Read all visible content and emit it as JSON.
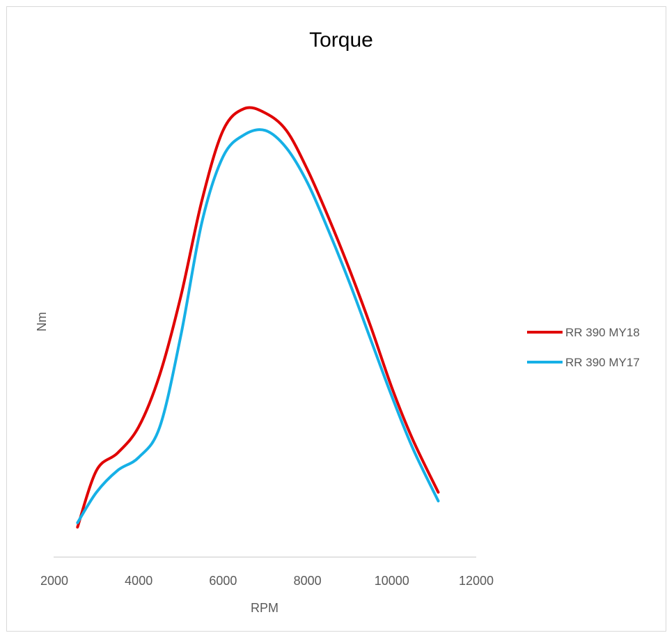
{
  "chart_data": {
    "type": "line",
    "title": "Torque",
    "xlabel": "RPM",
    "ylabel": "Nm",
    "xlim": [
      2000,
      12000
    ],
    "x_ticks": [
      "2000",
      "4000",
      "6000",
      "8000",
      "10000",
      "12000"
    ],
    "ylim": [
      0,
      100
    ],
    "y_ticks_shown": false,
    "grid": false,
    "legend_position": "right",
    "series": [
      {
        "name": "RR 390 MY18",
        "color": "#e00000",
        "x": [
          2550,
          3000,
          3500,
          4000,
          4500,
          5000,
          5500,
          6000,
          6500,
          7000,
          7500,
          8000,
          8500,
          9000,
          9500,
          10000,
          10500,
          11100
        ],
        "y": [
          4,
          17,
          21,
          27,
          39,
          57,
          79,
          95,
          100,
          99,
          95,
          86,
          75,
          63,
          50,
          36,
          24,
          12
        ]
      },
      {
        "name": "RR 390 MY17",
        "color": "#16b0e6",
        "x": [
          2550,
          3000,
          3500,
          4000,
          4500,
          5000,
          5500,
          6000,
          6500,
          7000,
          7500,
          8000,
          8500,
          9000,
          9500,
          10000,
          10500,
          11100
        ],
        "y": [
          5,
          12,
          17,
          20,
          27,
          48,
          74,
          89,
          94,
          95,
          91,
          83,
          72,
          60,
          47,
          34,
          22,
          10
        ]
      }
    ]
  }
}
